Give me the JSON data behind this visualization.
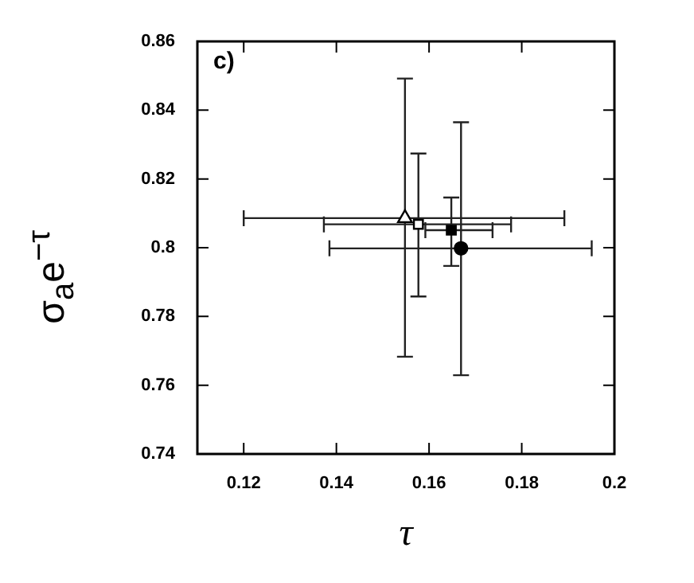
{
  "chart_data": {
    "type": "scatter",
    "xlabel": "τ",
    "ylabel": "σ$_{a}$e$^{−τ}$",
    "annotations": [
      "c)"
    ],
    "xlim": [
      0.11,
      0.2
    ],
    "xticks": [
      0.12,
      0.14,
      0.16,
      0.18,
      0.2
    ],
    "ylim": [
      0.74,
      0.86
    ],
    "yticks": [
      0.74,
      0.76,
      0.78,
      0.8,
      0.82,
      0.84,
      0.86
    ],
    "grid": false,
    "legend": false,
    "series": [
      {
        "marker": "triangle",
        "color": "#ffffff",
        "x": [
          0.1548
        ],
        "values": [
          0.8086
        ],
        "errors": [
          [
            0.7683,
            0.8492
          ]
        ],
        "xerrors": [
          [
            0.12,
            0.1892
          ]
        ]
      },
      {
        "marker": "square",
        "color": "#ffffff",
        "x": [
          0.1577
        ],
        "values": [
          0.8068
        ],
        "errors": [
          [
            0.7858,
            0.8274
          ]
        ],
        "xerrors": [
          [
            0.1373,
            0.1777
          ]
        ]
      },
      {
        "marker": "square",
        "color": "#000000",
        "x": [
          0.1648
        ],
        "values": [
          0.8051
        ],
        "errors": [
          [
            0.7947,
            0.8146
          ]
        ],
        "xerrors": [
          [
            0.1592,
            0.1737
          ]
        ]
      },
      {
        "marker": "circle",
        "color": "#000000",
        "x": [
          0.1669
        ],
        "values": [
          0.7998
        ],
        "errors": [
          [
            0.7629,
            0.8365
          ]
        ],
        "xerrors": [
          [
            0.1385,
            0.1951
          ]
        ]
      }
    ]
  }
}
